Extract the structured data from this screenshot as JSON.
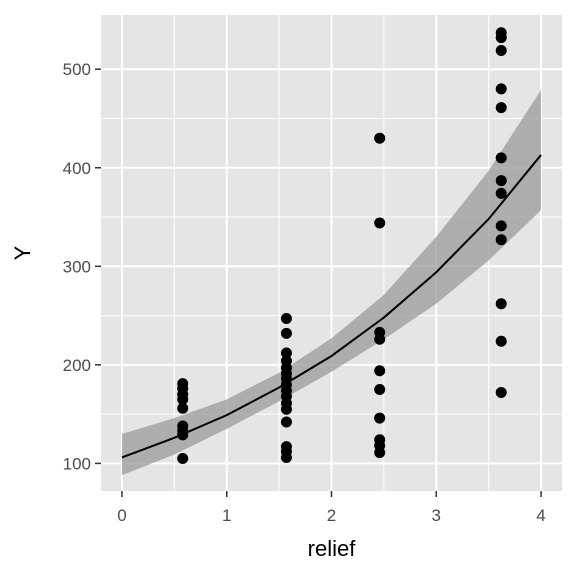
{
  "chart_data": {
    "type": "scatter",
    "xlabel": "relief",
    "ylabel": "Y",
    "xlim": [
      -0.2,
      4.2
    ],
    "ylim": [
      72,
      555
    ],
    "x_ticks": [
      0,
      1,
      2,
      3,
      4
    ],
    "x_tick_labels": [
      "0",
      "1",
      "2",
      "3",
      "4"
    ],
    "y_ticks": [
      100,
      200,
      300,
      400,
      500
    ],
    "y_tick_labels": [
      "100",
      "200",
      "300",
      "400",
      "500"
    ],
    "grid": true,
    "legend": "none",
    "colors": {
      "panel_background": "#e5e5e5",
      "grid_line": "#ffffff",
      "points": "#000000",
      "fit_line": "#000000",
      "confidence_band": "#999999"
    },
    "points": [
      {
        "x": 0.58,
        "y": 181
      },
      {
        "x": 0.58,
        "y": 176
      },
      {
        "x": 0.58,
        "y": 170
      },
      {
        "x": 0.58,
        "y": 165
      },
      {
        "x": 0.58,
        "y": 156
      },
      {
        "x": 0.58,
        "y": 138
      },
      {
        "x": 0.58,
        "y": 133
      },
      {
        "x": 0.58,
        "y": 129
      },
      {
        "x": 0.58,
        "y": 105
      },
      {
        "x": 1.57,
        "y": 247
      },
      {
        "x": 1.57,
        "y": 232
      },
      {
        "x": 1.57,
        "y": 212
      },
      {
        "x": 1.57,
        "y": 204
      },
      {
        "x": 1.57,
        "y": 197
      },
      {
        "x": 1.57,
        "y": 191
      },
      {
        "x": 1.57,
        "y": 186
      },
      {
        "x": 1.57,
        "y": 180
      },
      {
        "x": 1.57,
        "y": 174
      },
      {
        "x": 1.57,
        "y": 168
      },
      {
        "x": 1.57,
        "y": 161
      },
      {
        "x": 1.57,
        "y": 155
      },
      {
        "x": 1.57,
        "y": 142
      },
      {
        "x": 1.57,
        "y": 117
      },
      {
        "x": 1.57,
        "y": 112
      },
      {
        "x": 1.57,
        "y": 106
      },
      {
        "x": 2.46,
        "y": 430
      },
      {
        "x": 2.46,
        "y": 344
      },
      {
        "x": 2.46,
        "y": 233
      },
      {
        "x": 2.46,
        "y": 226
      },
      {
        "x": 2.46,
        "y": 194
      },
      {
        "x": 2.46,
        "y": 175
      },
      {
        "x": 2.46,
        "y": 146
      },
      {
        "x": 2.46,
        "y": 124
      },
      {
        "x": 2.46,
        "y": 118
      },
      {
        "x": 2.46,
        "y": 111
      },
      {
        "x": 3.62,
        "y": 537
      },
      {
        "x": 3.62,
        "y": 532
      },
      {
        "x": 3.62,
        "y": 519
      },
      {
        "x": 3.62,
        "y": 480
      },
      {
        "x": 3.62,
        "y": 461
      },
      {
        "x": 3.62,
        "y": 410
      },
      {
        "x": 3.62,
        "y": 387
      },
      {
        "x": 3.62,
        "y": 374
      },
      {
        "x": 3.62,
        "y": 341
      },
      {
        "x": 3.62,
        "y": 327
      },
      {
        "x": 3.62,
        "y": 262
      },
      {
        "x": 3.62,
        "y": 224
      },
      {
        "x": 3.62,
        "y": 172
      }
    ],
    "fit": {
      "x": [
        0.0,
        0.5,
        1.0,
        1.5,
        2.0,
        2.5,
        3.0,
        3.5,
        4.0
      ],
      "y": [
        106,
        126,
        149,
        177,
        209,
        248,
        294,
        348,
        413
      ],
      "lower": [
        88,
        109,
        135,
        163,
        193,
        226,
        262,
        306,
        357
      ],
      "upper": [
        130,
        146,
        165,
        192,
        227,
        271,
        330,
        397,
        479
      ]
    }
  }
}
